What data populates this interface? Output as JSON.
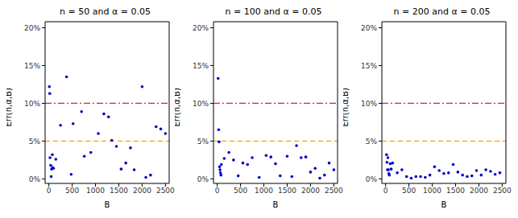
{
  "chart_data": [
    {
      "type": "scatter",
      "title": "n = 50 and α = 0.05",
      "x_label": "B",
      "y_label": "Err(n,α,B)",
      "color": "#0000cd",
      "marker": "circle",
      "x": [
        10,
        20,
        25,
        40,
        50,
        60,
        75,
        80,
        100,
        150,
        250,
        380,
        480,
        520,
        700,
        760,
        900,
        1060,
        1180,
        1280,
        1350,
        1450,
        1550,
        1650,
        1750,
        1830,
        2000,
        2080,
        2180,
        2300,
        2400,
        2500
      ],
      "values": [
        12.2,
        11.3,
        2.8,
        1.8,
        0.3,
        1.3,
        3.2,
        1.5,
        1.4,
        2.6,
        7.1,
        13.5,
        0.6,
        7.3,
        8.9,
        3.0,
        3.5,
        6.0,
        8.6,
        8.2,
        5.1,
        4.3,
        1.3,
        2.1,
        4.1,
        1.2,
        12.2,
        0.2,
        0.5,
        6.9,
        6.6,
        6.0
      ],
      "xlim": [
        -80,
        2580
      ],
      "ylim": [
        -0.6,
        20.8
      ],
      "xticks": [
        0,
        500,
        1000,
        1500,
        2000,
        2500
      ],
      "yticks": [
        {
          "value": 0,
          "label": "0%"
        },
        {
          "value": 5,
          "label": "5%"
        },
        {
          "value": 10,
          "label": "10%"
        },
        {
          "value": 15,
          "label": "15%"
        },
        {
          "value": 20,
          "label": "20%"
        }
      ],
      "reference_lines": [
        {
          "value": 10,
          "color": "#e8202a",
          "line_style": "dashdot"
        },
        {
          "value": 5,
          "color": "#ffa500",
          "line_style": "dashed"
        }
      ]
    },
    {
      "type": "scatter",
      "title": "n = 100 and α = 0.05",
      "x_label": "B",
      "y_label": "Err(n,α,B)",
      "color": "#0000cd",
      "marker": "circle",
      "x": [
        20,
        30,
        40,
        50,
        60,
        70,
        80,
        90,
        150,
        250,
        350,
        450,
        550,
        650,
        750,
        900,
        1050,
        1150,
        1250,
        1350,
        1500,
        1600,
        1700,
        1800,
        1900,
        2000,
        2100,
        2200,
        2300,
        2400,
        2500
      ],
      "values": [
        13.3,
        6.5,
        4.9,
        1.6,
        1.2,
        0.8,
        0.5,
        1.9,
        2.7,
        3.5,
        2.5,
        0.4,
        2.1,
        1.9,
        2.8,
        0.2,
        3.1,
        2.9,
        2.0,
        0.4,
        3.0,
        0.3,
        4.4,
        2.8,
        2.9,
        0.9,
        1.4,
        0.1,
        0.5,
        2.1,
        1.2
      ],
      "xlim": [
        -80,
        2580
      ],
      "ylim": [
        -0.6,
        20.8
      ],
      "xticks": [
        0,
        500,
        1000,
        1500,
        2000,
        2500
      ],
      "yticks": [
        {
          "value": 0,
          "label": "0%"
        },
        {
          "value": 5,
          "label": "5%"
        },
        {
          "value": 10,
          "label": "10%"
        },
        {
          "value": 15,
          "label": "15%"
        },
        {
          "value": 20,
          "label": "20%"
        }
      ],
      "reference_lines": [
        {
          "value": 10,
          "color": "#e8202a",
          "line_style": "dashdot"
        },
        {
          "value": 5,
          "color": "#ffa500",
          "line_style": "dashed"
        }
      ]
    },
    {
      "type": "scatter",
      "title": "n = 200 and α = 0.05",
      "x_label": "B",
      "y_label": "Err(n,α,B)",
      "color": "#0000cd",
      "marker": "circle",
      "x": [
        20,
        30,
        40,
        50,
        60,
        70,
        80,
        100,
        120,
        150,
        250,
        350,
        450,
        550,
        650,
        750,
        850,
        950,
        1050,
        1150,
        1250,
        1350,
        1450,
        1550,
        1650,
        1750,
        1850,
        1950,
        2050,
        2150,
        2250,
        2350,
        2450
      ],
      "values": [
        3.2,
        2.2,
        1.2,
        2.8,
        1.2,
        0.7,
        0.5,
        2.0,
        1.3,
        2.1,
        0.8,
        1.2,
        0.3,
        0.1,
        0.3,
        0.3,
        0.2,
        0.5,
        1.6,
        1.1,
        0.7,
        0.8,
        1.9,
        0.9,
        0.5,
        0.3,
        0.4,
        1.1,
        0.5,
        1.2,
        1.0,
        0.6,
        0.8
      ],
      "xlim": [
        -80,
        2580
      ],
      "ylim": [
        -0.6,
        20.8
      ],
      "xticks": [
        0,
        500,
        1000,
        1500,
        2000,
        2500
      ],
      "yticks": [
        {
          "value": 0,
          "label": "0%"
        },
        {
          "value": 5,
          "label": "5%"
        },
        {
          "value": 10,
          "label": "10%"
        },
        {
          "value": 15,
          "label": "15%"
        },
        {
          "value": 20,
          "label": "20%"
        }
      ],
      "reference_lines": [
        {
          "value": 10,
          "color": "#e8202a",
          "line_style": "dashdot"
        },
        {
          "value": 5,
          "color": "#ffa500",
          "line_style": "dashed"
        }
      ]
    }
  ]
}
